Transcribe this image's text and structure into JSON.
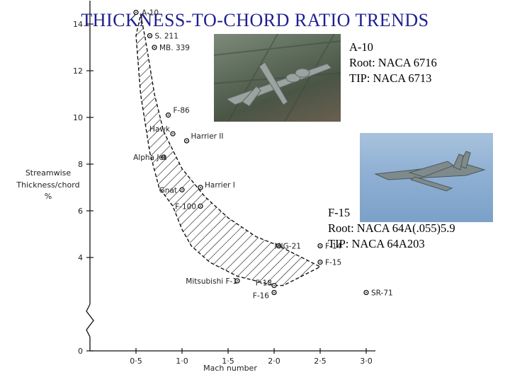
{
  "title": "THICKNESS-TO-CHORD RATIO TRENDS",
  "aircraft_a10": {
    "name": "A-10",
    "root": "Root: NACA 6716",
    "tip": "TIP: NACA 6713"
  },
  "aircraft_f15": {
    "name": "F-15",
    "root": "Root: NACA 64A(.055)5.9",
    "tip": "TIP: NACA 64A203"
  },
  "chart_data": {
    "type": "scatter",
    "xlabel": "Mach number",
    "ylabel_lines": [
      "Streamwise",
      "Thickness/chord",
      "%"
    ],
    "xlim": [
      0,
      3.0
    ],
    "ylim": [
      0,
      15
    ],
    "y_axis_break": true,
    "xticks": [
      "0·5",
      "1·0",
      "1·5",
      "2·0",
      "2·5",
      "3·0"
    ],
    "yticks": [
      "0",
      "4",
      "6",
      "8",
      "10",
      "12",
      "14"
    ],
    "band_upper": [
      [
        0.55,
        14.4
      ],
      [
        0.6,
        13.4
      ],
      [
        0.7,
        11.0
      ],
      [
        0.8,
        9.4
      ],
      [
        1.0,
        7.8
      ],
      [
        1.25,
        6.6
      ],
      [
        1.5,
        5.7
      ],
      [
        1.8,
        4.9
      ],
      [
        2.05,
        4.5
      ],
      [
        2.5,
        3.6
      ]
    ],
    "band_lower": [
      [
        2.5,
        3.6
      ],
      [
        2.1,
        2.8
      ],
      [
        2.0,
        2.8
      ],
      [
        1.6,
        3.2
      ],
      [
        1.3,
        3.8
      ],
      [
        1.1,
        4.5
      ],
      [
        1.0,
        5.2
      ],
      [
        0.9,
        6.2
      ],
      [
        0.75,
        7.0
      ],
      [
        0.65,
        8.5
      ],
      [
        0.55,
        11.0
      ],
      [
        0.5,
        13.5
      ],
      [
        0.55,
        14.4
      ]
    ],
    "points": [
      {
        "name": "A-10",
        "x": 0.5,
        "y": 14.5
      },
      {
        "name": "S. 211",
        "x": 0.65,
        "y": 13.5
      },
      {
        "name": "MB. 339",
        "x": 0.7,
        "y": 13.0
      },
      {
        "name": "F-86",
        "x": 0.85,
        "y": 10.1
      },
      {
        "name": "Hawk",
        "x": 0.9,
        "y": 9.3
      },
      {
        "name": "Harrier II",
        "x": 1.05,
        "y": 9.0
      },
      {
        "name": "Alpha Jet",
        "x": 0.8,
        "y": 8.3
      },
      {
        "name": "Harrier I",
        "x": 1.2,
        "y": 7.0
      },
      {
        "name": "Gnat",
        "x": 1.0,
        "y": 6.9
      },
      {
        "name": "F-100",
        "x": 1.2,
        "y": 6.2
      },
      {
        "name": "MIG-21",
        "x": 2.05,
        "y": 4.5
      },
      {
        "name": "F-14",
        "x": 2.5,
        "y": 4.5
      },
      {
        "name": "F-15",
        "x": 2.5,
        "y": 3.8
      },
      {
        "name": "Mitsubishi F-1",
        "x": 1.6,
        "y": 3.0
      },
      {
        "name": "F-18",
        "x": 2.0,
        "y": 2.8
      },
      {
        "name": "F-16",
        "x": 2.0,
        "y": 2.5
      },
      {
        "name": "SR-71",
        "x": 3.0,
        "y": 2.5
      }
    ]
  }
}
